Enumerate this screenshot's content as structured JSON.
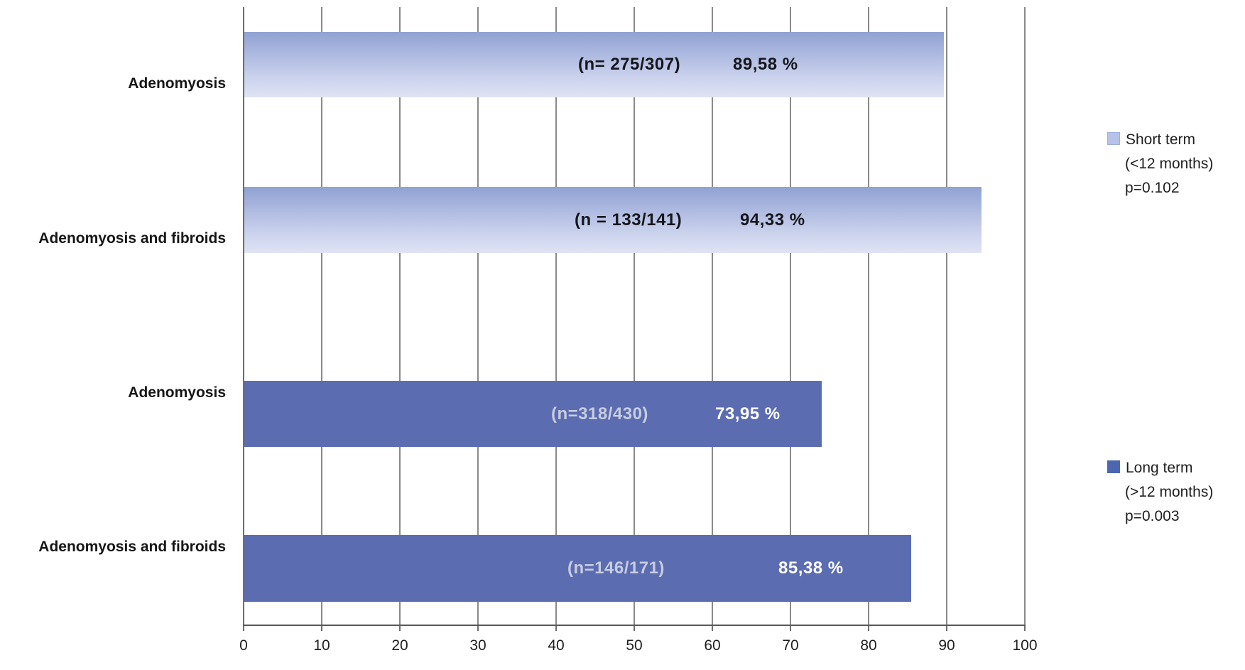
{
  "chart_data": {
    "type": "bar",
    "orientation": "horizontal",
    "title": "",
    "xlabel": "",
    "ylabel": "",
    "xlim": [
      0,
      100
    ],
    "x_ticks": [
      0,
      10,
      20,
      30,
      40,
      50,
      60,
      70,
      80,
      90,
      100
    ],
    "grid": true,
    "legend_position": "right",
    "categories": [
      "Adenomyosis",
      "Adenomyosis and fibroids",
      "Adenomyosis",
      "Adenomyosis and fibroids"
    ],
    "series": [
      {
        "name": "Short term (<12 months)",
        "p_value": "p=0.102",
        "color_top": "#90a2d2",
        "color_bottom": "#dfe3f4",
        "categories": [
          "Adenomyosis",
          "Adenomyosis and fibroids"
        ],
        "values": [
          89.58,
          94.33
        ],
        "n_labels": [
          "(n= 275/307)",
          "(n = 133/141)"
        ],
        "value_labels": [
          "89,58 %",
          "94,33 %"
        ]
      },
      {
        "name": "Long term (>12 months)",
        "p_value": "p=0.003",
        "color": "#5b6cb1",
        "categories": [
          "Adenomyosis",
          "Adenomyosis and fibroids"
        ],
        "values": [
          73.95,
          85.38
        ],
        "n_labels": [
          "(n=318/430)",
          "(n=146/171)"
        ],
        "value_labels": [
          "73,95 %",
          "85,38 %"
        ]
      }
    ]
  },
  "bars": [
    {
      "category": "Adenomyosis",
      "series": "short_term",
      "value": 89.58,
      "n_label": "(n= 275/307)",
      "pct_label": "89,58 %"
    },
    {
      "category": "Adenomyosis and fibroids",
      "series": "short_term",
      "value": 94.33,
      "n_label": "(n = 133/141)",
      "pct_label": "94,33 %"
    },
    {
      "category": "Adenomyosis",
      "series": "long_term",
      "value": 73.95,
      "n_label": "(n=318/430)",
      "pct_label": "73,95 %"
    },
    {
      "category": "Adenomyosis and fibroids",
      "series": "long_term",
      "value": 85.38,
      "n_label": "(n=146/171)",
      "pct_label": "85,38 %"
    }
  ],
  "axis": {
    "tick_labels": [
      "0",
      "10",
      "20",
      "30",
      "40",
      "50",
      "60",
      "70",
      "80",
      "90",
      "100"
    ]
  },
  "legend": [
    {
      "line1": "Short term",
      "line2": "(<12 months)",
      "line3": "p=0.102",
      "swatch_color": "#b6c2e7"
    },
    {
      "line1": "Long term",
      "line2": "(>12 months)",
      "line3": "p=0.003",
      "swatch_color": "#4e66b0"
    }
  ],
  "colors": {
    "short_term_bar_top": "#90a2d2",
    "short_term_bar_bottom": "#dfe3f4",
    "long_term_bar": "#5b6cb1",
    "gridline": "#8a8a8a",
    "axis_line": "#595959",
    "light_bar_label": "#16161d",
    "dark_bar_n_label": "#c7cde0",
    "dark_bar_pct_label": "#ffffff"
  }
}
